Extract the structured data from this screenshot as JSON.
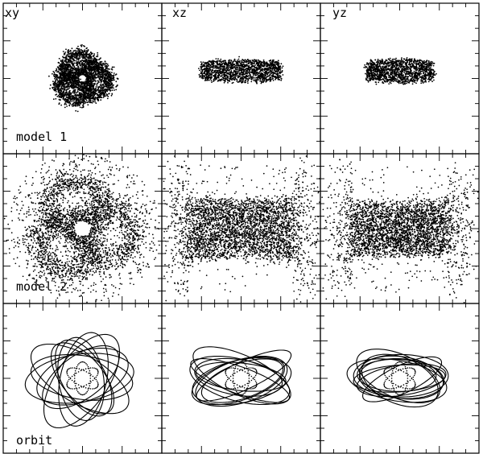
{
  "figure": {
    "column_labels": [
      "xy",
      "xz",
      "yz"
    ],
    "row_labels": [
      "model 1",
      "model 2",
      "orbit"
    ]
  },
  "chart_data": {
    "type": "scatter",
    "layout": "3x3 grid of square panels, shared frames, inward ticks on all sides",
    "columns": [
      "xy",
      "xz",
      "yz"
    ],
    "rows": [
      "model 1",
      "model 2",
      "orbit"
    ],
    "axes": {
      "range": [
        -1,
        1
      ],
      "tick_labels": "none",
      "axis_labels": "none",
      "major_ticks_per_side": 4,
      "minor_ticks_per_side": 12
    },
    "grid": false,
    "legend": "none",
    "colors": {
      "points": "#000000",
      "lines": "#000000",
      "background": "#ffffff"
    },
    "panels": [
      {
        "row": "model 1",
        "projection": "xy",
        "kind": "three-lobed ring structure (trefoil) with dense core and central hole",
        "lobes": 3,
        "lobe_radius": 0.2,
        "lobe_distance": 0.15,
        "core_radius": 0.35,
        "hole_radius": 0.05,
        "points": 2200
      },
      {
        "row": "model 1",
        "projection": "xz",
        "kind": "flattened elongated distribution",
        "half_width": 0.5,
        "half_height": 0.15,
        "center_y": 0.1,
        "points": 1500
      },
      {
        "row": "model 1",
        "projection": "yz",
        "kind": "flattened elongated distribution",
        "half_width": 0.42,
        "half_height": 0.16,
        "center_y": 0.1,
        "points": 1400
      },
      {
        "row": "model 2",
        "projection": "xy",
        "kind": "three-lobed ring structure with diffuse halo",
        "lobes": 3,
        "lobe_radius": 0.36,
        "lobe_distance": 0.28,
        "hole_radius": 0.1,
        "points": 3800
      },
      {
        "row": "model 2",
        "projection": "xz",
        "kind": "dense box-shaped core with diffuse flaring ends",
        "core_half_width": 0.65,
        "core_half_height": 0.35,
        "points": 3800
      },
      {
        "row": "model 2",
        "projection": "yz",
        "kind": "dense box-shaped core with diffuse flaring ends",
        "core_half_width": 0.6,
        "core_half_height": 0.32,
        "points": 3600
      },
      {
        "row": "orbit",
        "projection": "xy",
        "kind": "single orbit: rotating ellipses (solid) plus dotted inner loop",
        "ellipse_semi_axes": [
          0.65,
          0.28
        ],
        "ellipse_count": 10
      },
      {
        "row": "orbit",
        "projection": "xz",
        "kind": "single orbit: tilted ellipses (solid) plus dotted inner loop",
        "ellipse_semi_axes": [
          0.62,
          0.22
        ],
        "ellipse_count": 10
      },
      {
        "row": "orbit",
        "projection": "yz",
        "kind": "single orbit: tilted ellipses (solid) plus dotted inner loop",
        "ellipse_semi_axes": [
          0.58,
          0.24
        ],
        "ellipse_count": 10
      }
    ]
  }
}
